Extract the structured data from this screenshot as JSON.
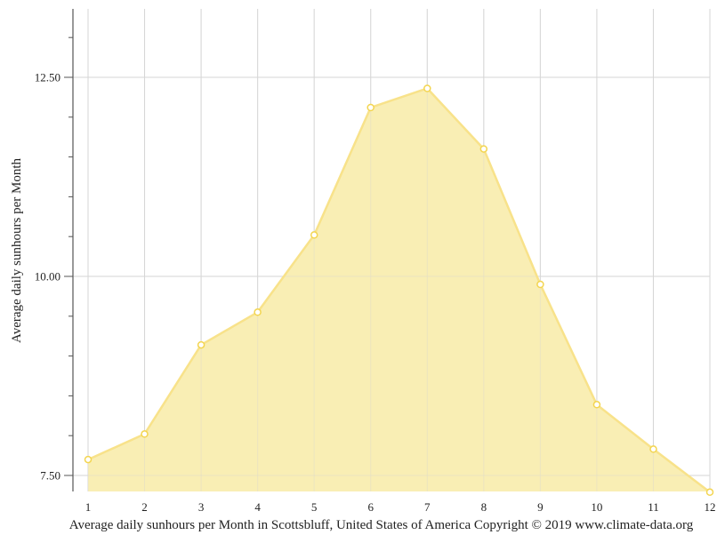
{
  "chart_data": {
    "type": "area",
    "title": "Average daily sunhours per Month in Scottsbluff, United States of America Copyright © 2019 www.climate-data.org",
    "xlabel": "",
    "ylabel": "Average daily sunhours per Month",
    "categories": [
      "1",
      "2",
      "3",
      "4",
      "5",
      "6",
      "7",
      "8",
      "9",
      "10",
      "11",
      "12"
    ],
    "series": [
      {
        "name": "Average daily sunhours",
        "values": [
          7.7,
          8.02,
          9.14,
          9.55,
          10.52,
          12.12,
          12.36,
          11.6,
          9.9,
          8.39,
          7.83,
          7.29
        ]
      }
    ],
    "y_ticks": [
      "7.50",
      "10.00",
      "12.50"
    ],
    "y_tick_values": [
      7.5,
      10.0,
      12.5
    ],
    "ylim": [
      7.3,
      13.35
    ],
    "grid": true,
    "legend": "none",
    "colors": {
      "fill": "#f9edb0",
      "line": "#f8e28a",
      "marker_stroke": "#f3d550",
      "marker_fill": "#ffffff",
      "grid": "#d6d6d6",
      "axis": "#555555"
    }
  },
  "caption": "Average daily sunhours per Month in Scottsbluff, United States of America Copyright © 2019 www.climate-data.org"
}
